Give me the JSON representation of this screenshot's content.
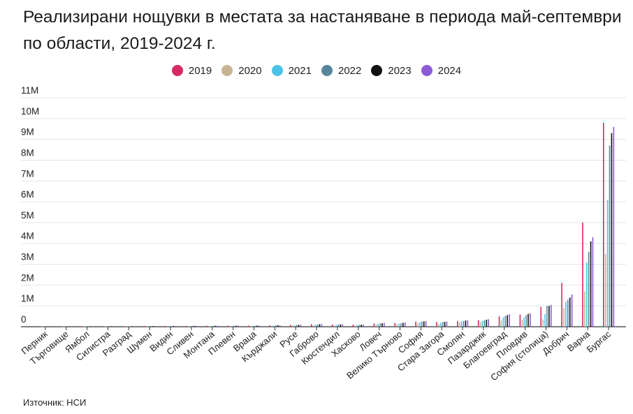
{
  "title": "Реализирани нощувки в местата за настаняване в периода май-септември по области, 2019-2024 г.",
  "source": "Източник: НСИ",
  "colors": {
    "2019": "#d62a62",
    "2020": "#c9b294",
    "2021": "#4cc3e6",
    "2022": "#58859c",
    "2023": "#111111",
    "2024": "#8c5bd6"
  },
  "chart_data": {
    "type": "bar",
    "title": "Реализирани нощувки в местата за настаняване в периода май-септември по области, 2019-2024 г.",
    "xlabel": "",
    "ylabel": "",
    "ylim": [
      0,
      11000000
    ],
    "yticks": [
      "0",
      "1M",
      "2M",
      "3M",
      "4M",
      "5M",
      "6M",
      "7M",
      "8M",
      "9M",
      "10M",
      "11M"
    ],
    "grid": true,
    "legend_position": "top-center",
    "categories": [
      "Перник",
      "Търговище",
      "Ямбол",
      "Силистра",
      "Разград",
      "Шумен",
      "Видин",
      "Сливен",
      "Монтана",
      "Плевен",
      "Враца",
      "Кърджали",
      "Русе",
      "Габрово",
      "Кюстендил",
      "Хасково",
      "Ловеч",
      "Велико Търново",
      "София",
      "Стара Загора",
      "Смолян",
      "Пазарджик",
      "Благоевград",
      "Пловдив",
      "София (столица)",
      "Добрич",
      "Варна",
      "Бургас"
    ],
    "series": [
      {
        "name": "2019",
        "values": [
          15000,
          18000,
          20000,
          22000,
          24000,
          30000,
          35000,
          40000,
          45000,
          50000,
          55000,
          70000,
          90000,
          120000,
          110000,
          100000,
          160000,
          180000,
          250000,
          230000,
          280000,
          320000,
          500000,
          580000,
          950000,
          2100000,
          5000000,
          9800000
        ]
      },
      {
        "name": "2020",
        "values": [
          8000,
          10000,
          12000,
          14000,
          15000,
          18000,
          20000,
          24000,
          26000,
          30000,
          32000,
          45000,
          55000,
          70000,
          70000,
          60000,
          100000,
          110000,
          160000,
          140000,
          210000,
          220000,
          320000,
          330000,
          350000,
          900000,
          1700000,
          3500000
        ]
      },
      {
        "name": "2021",
        "values": [
          12000,
          14000,
          16000,
          18000,
          20000,
          25000,
          28000,
          32000,
          38000,
          42000,
          45000,
          60000,
          75000,
          100000,
          90000,
          85000,
          140000,
          150000,
          220000,
          190000,
          250000,
          280000,
          450000,
          450000,
          600000,
          1200000,
          3100000,
          6100000
        ]
      },
      {
        "name": "2022",
        "values": [
          14000,
          16000,
          18000,
          20000,
          22000,
          28000,
          32000,
          36000,
          42000,
          46000,
          50000,
          65000,
          85000,
          110000,
          100000,
          95000,
          160000,
          170000,
          240000,
          220000,
          280000,
          310000,
          520000,
          560000,
          1000000,
          1300000,
          3600000,
          8700000
        ]
      },
      {
        "name": "2023",
        "values": [
          16000,
          18000,
          20000,
          22000,
          24000,
          30000,
          34000,
          38000,
          44000,
          48000,
          52000,
          70000,
          90000,
          120000,
          110000,
          100000,
          170000,
          190000,
          260000,
          240000,
          300000,
          340000,
          560000,
          620000,
          1000000,
          1400000,
          4100000,
          9300000
        ]
      },
      {
        "name": "2024",
        "values": [
          18000,
          20000,
          22000,
          24000,
          26000,
          32000,
          36000,
          40000,
          46000,
          52000,
          56000,
          75000,
          95000,
          130000,
          120000,
          110000,
          180000,
          200000,
          270000,
          250000,
          310000,
          360000,
          600000,
          650000,
          1050000,
          1550000,
          4300000,
          9600000
        ]
      }
    ]
  }
}
